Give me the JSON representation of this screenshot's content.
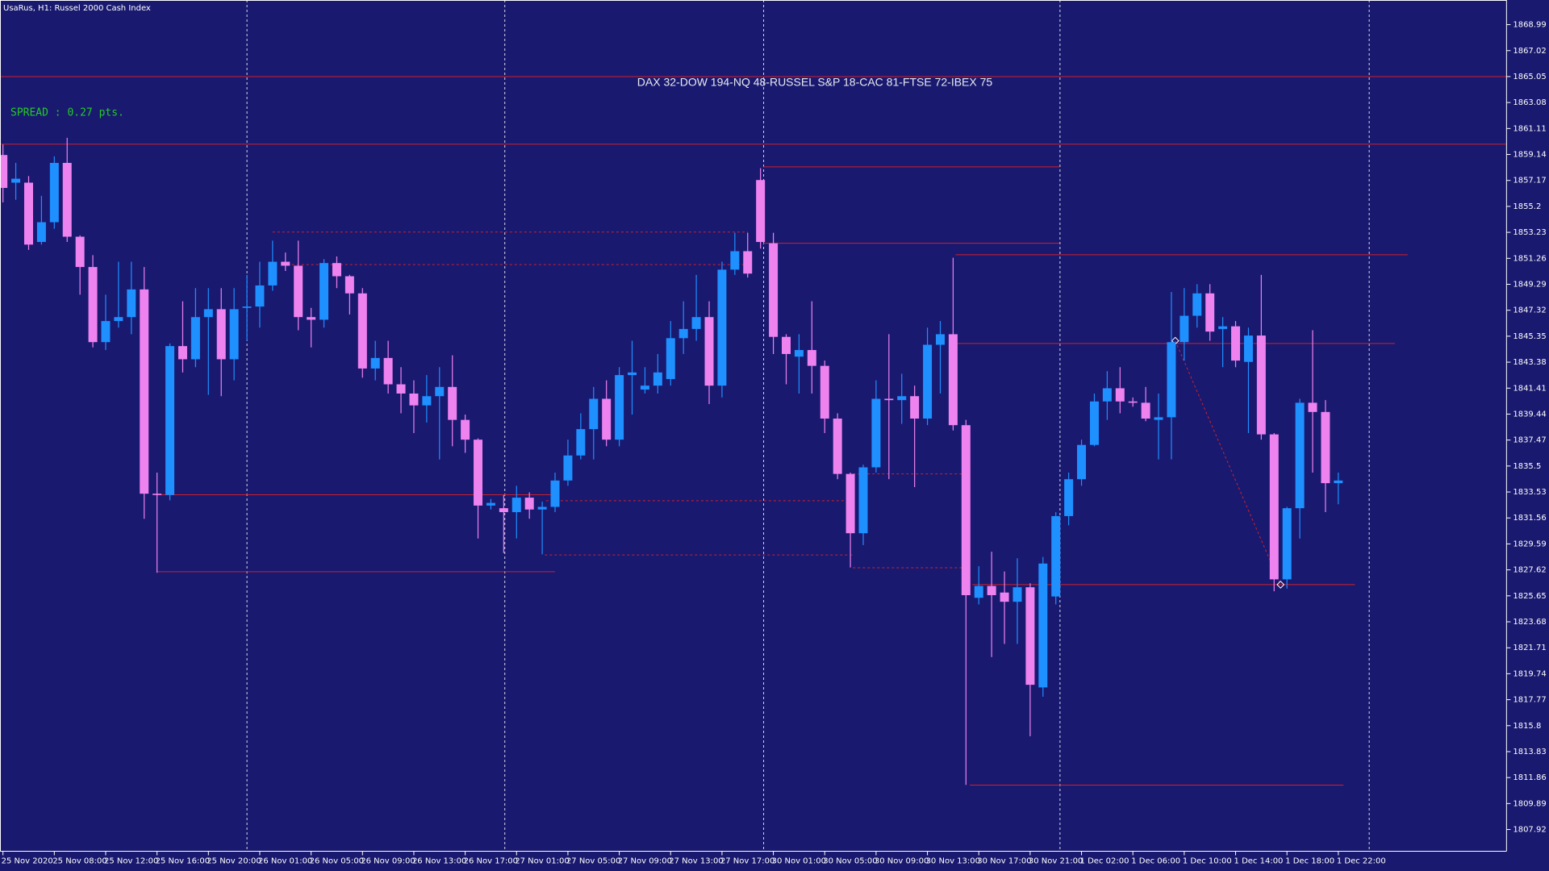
{
  "chart_data": {
    "type": "candlestick",
    "title": "UsaRus, H1:  Russel 2000 Cash Index",
    "info_text": "DAX 32-DOW 194-NQ 48-RUSSEL S&P 18-CAC 81-FTSE 72-IBEX 75",
    "spread_text": "SPREAD : 0.27 pts.",
    "up_color": "#1e90ff",
    "down_color": "#ee82ee",
    "level_color": "#d0202a",
    "categories": [
      "25 Nov 2020",
      null,
      null,
      null,
      "25 Nov 08:00",
      null,
      null,
      null,
      "25 Nov 12:00",
      null,
      null,
      null,
      "25 Nov 16:00",
      null,
      null,
      null,
      "25 Nov 20:00",
      null,
      null,
      null,
      "26 Nov 01:00",
      null,
      null,
      null,
      "26 Nov 05:00",
      null,
      null,
      null,
      "26 Nov 09:00",
      null,
      null,
      null,
      "26 Nov 13:00",
      null,
      null,
      null,
      "26 Nov 17:00",
      null,
      null,
      null,
      "27 Nov 01:00",
      null,
      null,
      null,
      "27 Nov 05:00",
      null,
      null,
      null,
      "27 Nov 09:00",
      null,
      null,
      null,
      "27 Nov 13:00",
      null,
      null,
      null,
      "27 Nov 17:00",
      null,
      null,
      null,
      "30 Nov 01:00",
      null,
      null,
      null,
      "30 Nov 05:00",
      null,
      null,
      null,
      "30 Nov 09:00",
      null,
      null,
      null,
      "30 Nov 13:00",
      null,
      null,
      null,
      "30 Nov 17:00",
      null,
      null,
      null,
      "30 Nov 21:00",
      null,
      null,
      null,
      "1 Dec 02:00",
      null,
      null,
      null,
      "1 Dec 06:00",
      null,
      null,
      null,
      "1 Dec 10:00",
      null,
      null,
      null,
      "1 Dec 14:00",
      null,
      null,
      null,
      "1 Dec 18:00",
      null,
      null,
      null,
      "1 Dec 22:00"
    ],
    "open": [
      1859.1,
      1857.0,
      1857.0,
      1852.5,
      1854.0,
      1858.5,
      1852.9,
      1850.6,
      1844.9,
      1846.5,
      1846.8,
      1848.9,
      1833.4,
      1833.3,
      1844.6,
      1843.6,
      1846.8,
      1847.4,
      1843.6,
      1847.5,
      1847.6,
      1849.2,
      1851.0,
      1850.7,
      1846.8,
      1846.6,
      1850.9,
      1849.9,
      1848.6,
      1842.9,
      1843.7,
      1841.7,
      1841.0,
      1840.1,
      1840.8,
      1841.5,
      1839.0,
      1837.5,
      1832.5,
      1832.3,
      1832.0,
      1833.1,
      1832.2,
      1832.4,
      1834.4,
      1836.3,
      1838.3,
      1840.6,
      1837.5,
      1842.4,
      1841.3,
      1841.6,
      1842.1,
      1845.2,
      1845.9,
      1846.8,
      1841.6,
      1850.4,
      1851.8,
      1857.2,
      1852.4,
      1845.3,
      1843.8,
      1844.3,
      1843.1,
      1839.1,
      1834.9,
      1830.4,
      1835.4,
      1840.6,
      1840.5,
      1840.8,
      1839.1,
      1844.7,
      1845.5,
      1838.6,
      1825.5,
      1826.4,
      1825.9,
      1825.2,
      1826.3,
      1818.7,
      1825.6,
      1831.7,
      1834.5,
      1837.1,
      1840.4,
      1841.4,
      1840.4,
      1840.3,
      1839.0,
      1839.2,
      1844.9,
      1846.9,
      1848.6,
      1845.9,
      1846.1,
      1843.4,
      1845.4,
      1837.9,
      1826.9,
      1832.3,
      1840.3,
      1839.6,
      1834.2
    ],
    "high": [
      1859.9,
      1858.5,
      1857.5,
      1856.0,
      1859.0,
      1860.4,
      1853.0,
      1851.5,
      1848.5,
      1851.0,
      1851.0,
      1850.6,
      1835.0,
      1844.8,
      1848.0,
      1849.0,
      1849.0,
      1849.0,
      1849.0,
      1850.0,
      1851.0,
      1852.6,
      1851.7,
      1852.6,
      1847.5,
      1851.2,
      1851.4,
      1850.0,
      1849.0,
      1845.0,
      1845.0,
      1843.0,
      1842.0,
      1842.4,
      1843.0,
      1843.9,
      1839.4,
      1837.6,
      1833.0,
      1833.3,
      1834.0,
      1833.5,
      1832.8,
      1835.0,
      1837.5,
      1839.5,
      1841.5,
      1842.0,
      1843.0,
      1845.0,
      1843.0,
      1844.0,
      1846.5,
      1848.0,
      1850.0,
      1848.0,
      1851.0,
      1853.2,
      1853.2,
      1858.1,
      1853.2,
      1845.5,
      1845.5,
      1848.0,
      1843.5,
      1839.5,
      1835.0,
      1835.6,
      1842.0,
      1845.5,
      1842.5,
      1841.6,
      1846.0,
      1846.5,
      1851.3,
      1839.0,
      1827.9,
      1829.0,
      1827.5,
      1828.5,
      1826.6,
      1828.6,
      1832.0,
      1835.0,
      1837.5,
      1841.0,
      1842.7,
      1843.0,
      1840.7,
      1841.5,
      1841.0,
      1848.7,
      1849.0,
      1849.3,
      1849.3,
      1846.8,
      1846.5,
      1846.0,
      1850.0,
      1838.0,
      1832.4,
      1840.6,
      1845.8,
      1840.5,
      1835.0
    ],
    "low": [
      1855.5,
      1855.7,
      1851.9,
      1852.3,
      1853.5,
      1852.5,
      1848.5,
      1844.5,
      1844.3,
      1846.0,
      1845.5,
      1831.5,
      1827.4,
      1832.9,
      1842.6,
      1843.0,
      1840.9,
      1840.8,
      1842.0,
      1845.0,
      1846.0,
      1848.8,
      1850.3,
      1845.8,
      1844.5,
      1846.0,
      1849.0,
      1847.0,
      1842.2,
      1842.0,
      1841.0,
      1839.5,
      1838.0,
      1838.8,
      1836.0,
      1837.0,
      1836.5,
      1830.0,
      1832.2,
      1828.9,
      1830.0,
      1831.5,
      1828.8,
      1832.0,
      1834.0,
      1836.0,
      1836.0,
      1837.0,
      1837.0,
      1839.4,
      1841.0,
      1841.0,
      1841.6,
      1844.0,
      1845.0,
      1840.2,
      1840.7,
      1850.0,
      1849.8,
      1852.0,
      1844.0,
      1841.7,
      1841.0,
      1841.0,
      1838.0,
      1834.5,
      1827.8,
      1829.5,
      1835.0,
      1834.5,
      1838.7,
      1833.9,
      1838.6,
      1841.0,
      1838.2,
      1811.3,
      1825.0,
      1821.0,
      1822.0,
      1822.0,
      1815.0,
      1818.0,
      1825.0,
      1831.0,
      1834.0,
      1837.0,
      1839.0,
      1839.5,
      1840.0,
      1838.9,
      1836.0,
      1836.0,
      1843.5,
      1846.0,
      1845.0,
      1843.0,
      1843.0,
      1838.0,
      1837.5,
      1826.0,
      1826.2,
      1830.0,
      1835.0,
      1832.0,
      1832.6
    ],
    "close": [
      1856.6,
      1857.3,
      1852.3,
      1854.0,
      1858.5,
      1852.9,
      1850.6,
      1844.9,
      1846.5,
      1846.8,
      1848.9,
      1833.4,
      1833.3,
      1844.6,
      1843.6,
      1846.8,
      1847.4,
      1843.6,
      1847.4,
      1847.6,
      1849.2,
      1851.0,
      1850.7,
      1846.8,
      1846.6,
      1850.9,
      1849.9,
      1848.6,
      1842.9,
      1843.7,
      1841.7,
      1841.0,
      1840.1,
      1840.8,
      1841.5,
      1839.0,
      1837.5,
      1832.5,
      1832.7,
      1832.0,
      1833.1,
      1832.2,
      1832.4,
      1834.4,
      1836.3,
      1838.3,
      1840.6,
      1837.5,
      1842.4,
      1842.6,
      1841.6,
      1842.6,
      1845.2,
      1845.9,
      1846.8,
      1841.6,
      1850.4,
      1851.8,
      1850.1,
      1852.5,
      1845.3,
      1844.0,
      1844.3,
      1843.1,
      1839.1,
      1834.9,
      1830.4,
      1835.4,
      1840.6,
      1840.5,
      1840.8,
      1839.1,
      1844.7,
      1845.5,
      1838.6,
      1825.7,
      1826.4,
      1825.7,
      1825.2,
      1826.3,
      1818.9,
      1828.1,
      1831.7,
      1834.5,
      1837.1,
      1840.4,
      1841.4,
      1840.4,
      1840.3,
      1839.1,
      1839.2,
      1844.9,
      1846.9,
      1848.6,
      1845.7,
      1846.1,
      1843.5,
      1845.4,
      1837.9,
      1826.9,
      1832.3,
      1840.3,
      1839.6,
      1834.2,
      1834.4
    ],
    "xlim": [
      -0.23,
      117.1
    ],
    "ylim": [
      1806.27,
      1870.86
    ],
    "yticks": [
      1868.99,
      1867.02,
      1865.05,
      1863.08,
      1861.11,
      1859.14,
      1857.17,
      1855.2,
      1853.23,
      1851.26,
      1849.29,
      1847.32,
      1845.35,
      1843.38,
      1841.41,
      1839.44,
      1837.47,
      1835.5,
      1833.53,
      1831.56,
      1829.59,
      1827.62,
      1825.65,
      1823.68,
      1821.71,
      1819.74,
      1817.77,
      1815.8,
      1813.83,
      1811.86,
      1809.89,
      1807.92
    ],
    "levels": [
      {
        "value": 1865.05,
        "x": [
          -0.23,
          117.1
        ],
        "dashed": false
      },
      {
        "value": 1859.92,
        "x": [
          -0.23,
          117.1
        ],
        "dashed": false
      },
      {
        "value": 1858.2,
        "x": [
          59.2,
          82.3
        ],
        "dashed": false
      },
      {
        "value": 1852.4,
        "x": [
          59.2,
          82.3
        ],
        "dashed": false
      },
      {
        "value": 1851.53,
        "x": [
          74.2,
          109.4
        ],
        "dashed": false
      },
      {
        "value": 1844.8,
        "x": [
          74.2,
          108.4
        ],
        "dashed": false
      },
      {
        "value": 1833.32,
        "x": [
          12,
          43
        ],
        "dashed": false
      },
      {
        "value": 1827.48,
        "x": [
          12,
          43
        ],
        "dashed": false
      },
      {
        "value": 1826.5,
        "x": [
          75.5,
          105.3
        ],
        "dashed": false
      },
      {
        "value": 1811.29,
        "x": [
          75.3,
          104.4
        ],
        "dashed": false
      },
      {
        "value": 1853.25,
        "x": [
          21,
          58
        ],
        "dashed": true
      },
      {
        "value": 1850.78,
        "x": [
          22.5,
          58
        ],
        "dashed": true
      },
      {
        "value": 1832.87,
        "x": [
          42.3,
          66.2
        ],
        "dashed": true
      },
      {
        "value": 1828.75,
        "x": [
          42.2,
          66.2
        ],
        "dashed": true
      },
      {
        "value": 1834.9,
        "x": [
          66.2,
          75
        ],
        "dashed": true
      },
      {
        "value": 1827.78,
        "x": [
          66.2,
          75
        ],
        "dashed": true
      }
    ],
    "trendline": {
      "x": [
        91.3,
        99.5
      ],
      "y": [
        1845.0,
        1826.5
      ]
    }
  }
}
